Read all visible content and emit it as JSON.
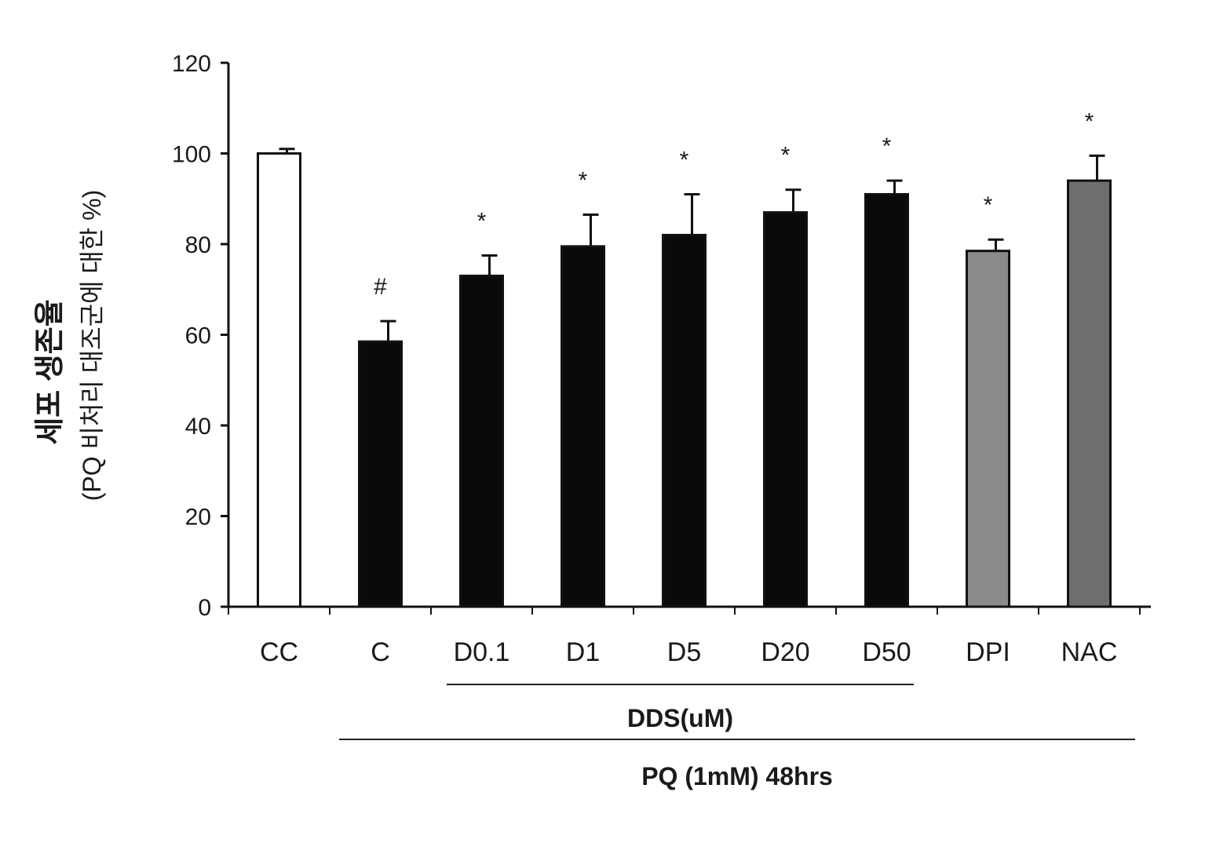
{
  "chart_data": {
    "type": "bar",
    "title": "",
    "ylabel": "세포 생존율",
    "ylabel_sub": "(PQ 비처리 대조군에 대한 %)",
    "xlabel": "",
    "ylim": [
      0,
      120
    ],
    "yticks": [
      0,
      20,
      40,
      60,
      80,
      100,
      120
    ],
    "categories": [
      "CC",
      "C",
      "D0.1",
      "D1",
      "D5",
      "D20",
      "D50",
      "DPI",
      "NAC"
    ],
    "values": [
      100,
      58.5,
      73,
      79.5,
      82,
      87,
      91,
      78.5,
      94
    ],
    "errors": [
      1,
      4.5,
      4.5,
      7,
      9,
      5,
      3,
      2.5,
      5.5
    ],
    "markers": [
      "",
      "#",
      "*",
      "*",
      "*",
      "*",
      "*",
      "*",
      "*"
    ],
    "bar_fills": [
      "#ffffff",
      "#0a0a0a",
      "#0a0a0a",
      "#0a0a0a",
      "#0a0a0a",
      "#0a0a0a",
      "#0a0a0a",
      "#8a8a8a",
      "#6e6e6e"
    ],
    "groups": [
      {
        "label": "DDS(uM)",
        "from": 2,
        "to": 6
      },
      {
        "label": "PQ (1mM)  48hrs",
        "from": 1,
        "to": 8
      }
    ],
    "grid": false,
    "legend": "none"
  }
}
